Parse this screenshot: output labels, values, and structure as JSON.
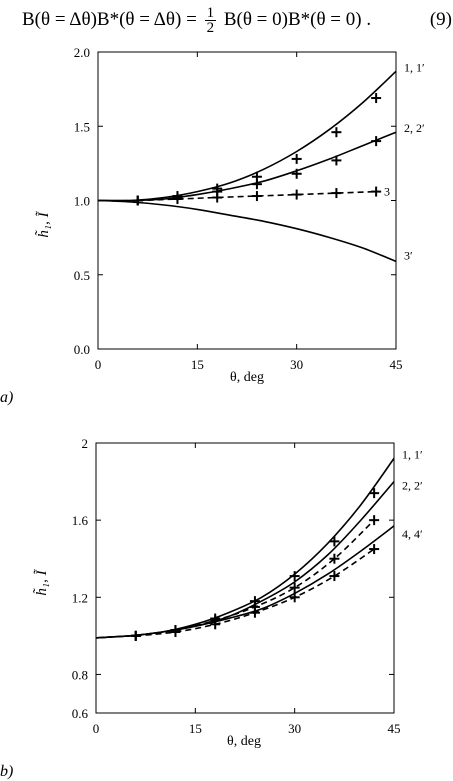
{
  "equation": {
    "lhs": "B(θ = Δθ)B*(θ = Δθ)",
    "equals": "=",
    "frac_num": "1",
    "frac_den": "2",
    "rhs": "B(θ = 0)B*(θ = 0) .",
    "number": "(9)"
  },
  "chart_data": [
    {
      "type": "line",
      "panel_label": "a)",
      "xlabel": "θ, deg",
      "ylabel": "h̃₁, Ĩ",
      "xlim": [
        0,
        45
      ],
      "ylim": [
        0,
        2
      ],
      "xticks": [
        0,
        15,
        30,
        45
      ],
      "xtick_labels": [
        "0",
        "15",
        "30",
        "45"
      ],
      "yticks": [
        0,
        0.5,
        1,
        1.5,
        2
      ],
      "ytick_labels": [
        "0.0",
        "0.5",
        "1.0",
        "1.5",
        "2.0"
      ],
      "grid": false,
      "legend": "none",
      "series": [
        {
          "name": "1, 1′",
          "style": "solid",
          "x": [
            0,
            5,
            10,
            15,
            20,
            25,
            30,
            35,
            40,
            45
          ],
          "y": [
            1.0,
            1.0,
            1.02,
            1.06,
            1.12,
            1.21,
            1.33,
            1.48,
            1.66,
            1.87
          ]
        },
        {
          "name": "",
          "style": "markers",
          "x": [
            6,
            12,
            18,
            24,
            30,
            36,
            42
          ],
          "y": [
            1.0,
            1.03,
            1.08,
            1.16,
            1.28,
            1.46,
            1.69
          ]
        },
        {
          "name": "2, 2′",
          "style": "solid",
          "x": [
            0,
            5,
            10,
            15,
            20,
            25,
            30,
            35,
            40,
            45
          ],
          "y": [
            1.0,
            1.0,
            1.01,
            1.04,
            1.08,
            1.13,
            1.2,
            1.28,
            1.37,
            1.46
          ]
        },
        {
          "name": "",
          "style": "markers",
          "x": [
            6,
            12,
            18,
            24,
            30,
            36,
            42
          ],
          "y": [
            1.0,
            1.02,
            1.06,
            1.11,
            1.18,
            1.27,
            1.4
          ]
        },
        {
          "name": "3",
          "style": "dashed",
          "x": [
            6,
            12,
            18,
            24,
            30,
            36,
            42
          ],
          "y": [
            1.0,
            1.01,
            1.02,
            1.03,
            1.04,
            1.05,
            1.06
          ]
        },
        {
          "name": "",
          "style": "markers",
          "x": [
            6,
            12,
            18,
            24,
            30,
            36,
            42
          ],
          "y": [
            1.0,
            1.01,
            1.02,
            1.03,
            1.04,
            1.05,
            1.06
          ]
        },
        {
          "name": "3′",
          "style": "solid",
          "x": [
            0,
            5,
            10,
            15,
            20,
            25,
            30,
            35,
            40,
            45
          ],
          "y": [
            1.0,
            0.99,
            0.97,
            0.94,
            0.9,
            0.86,
            0.81,
            0.75,
            0.68,
            0.59
          ]
        }
      ]
    },
    {
      "type": "line",
      "panel_label": "b)",
      "xlabel": "θ, deg",
      "ylabel": "h̃₁, Ĩ",
      "xlim": [
        0,
        45
      ],
      "ylim": [
        0.6,
        2
      ],
      "xticks": [
        0,
        15,
        30,
        45
      ],
      "xtick_labels": [
        "0",
        "15",
        "30",
        "45"
      ],
      "yticks": [
        0.6,
        0.8,
        1.2,
        1.6,
        2
      ],
      "ytick_labels": [
        "0.6",
        "0.8",
        "1.2",
        "1.6",
        "2"
      ],
      "grid": false,
      "legend": "none",
      "series": [
        {
          "name": "1, 1′",
          "style": "solid",
          "x": [
            0,
            5,
            10,
            15,
            20,
            25,
            30,
            35,
            40,
            45
          ],
          "y": [
            0.99,
            1.0,
            1.02,
            1.06,
            1.12,
            1.2,
            1.32,
            1.48,
            1.68,
            1.92
          ]
        },
        {
          "name": "",
          "style": "markers",
          "x": [
            6,
            12,
            18,
            24,
            30,
            36,
            42
          ],
          "y": [
            1.0,
            1.03,
            1.09,
            1.18,
            1.31,
            1.49,
            1.74
          ]
        },
        {
          "name": "2, 2′",
          "style": "solid",
          "x": [
            0,
            5,
            10,
            15,
            20,
            25,
            30,
            35,
            40,
            45
          ],
          "y": [
            0.99,
            1.0,
            1.02,
            1.05,
            1.1,
            1.18,
            1.28,
            1.42,
            1.6,
            1.8
          ]
        },
        {
          "name": "",
          "style": "dashed",
          "x": [
            6,
            12,
            18,
            24,
            30,
            36,
            42
          ],
          "y": [
            1.0,
            1.03,
            1.08,
            1.15,
            1.25,
            1.4,
            1.6
          ]
        },
        {
          "name": "",
          "style": "markers",
          "x": [
            6,
            12,
            18,
            24,
            30,
            36,
            42
          ],
          "y": [
            1.0,
            1.03,
            1.08,
            1.15,
            1.25,
            1.4,
            1.6
          ]
        },
        {
          "name": "4, 4′",
          "style": "solid",
          "x": [
            0,
            5,
            10,
            15,
            20,
            25,
            30,
            35,
            40,
            45
          ],
          "y": [
            0.99,
            1.0,
            1.02,
            1.05,
            1.09,
            1.14,
            1.22,
            1.32,
            1.44,
            1.57
          ]
        },
        {
          "name": "",
          "style": "dashed",
          "x": [
            6,
            12,
            18,
            24,
            30,
            36,
            42
          ],
          "y": [
            1.0,
            1.02,
            1.06,
            1.12,
            1.2,
            1.31,
            1.45
          ]
        },
        {
          "name": "",
          "style": "markers",
          "x": [
            6,
            12,
            18,
            24,
            30,
            36,
            42
          ],
          "y": [
            1.0,
            1.02,
            1.06,
            1.12,
            1.2,
            1.31,
            1.45
          ]
        }
      ]
    }
  ]
}
